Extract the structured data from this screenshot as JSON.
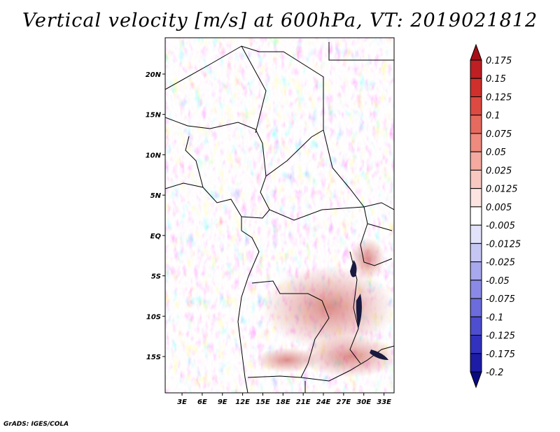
{
  "title": "Vertical velocity [m/s] at 600hPa, VT: 2019021812",
  "footer": "GrADS: IGES/COLA",
  "map": {
    "lat_labels": [
      {
        "text": "20N",
        "lat": 20
      },
      {
        "text": "15N",
        "lat": 15
      },
      {
        "text": "10N",
        "lat": 10
      },
      {
        "text": "5N",
        "lat": 5
      },
      {
        "text": "EQ",
        "lat": 0
      },
      {
        "text": "5S",
        "lat": -5
      },
      {
        "text": "10S",
        "lat": -10
      },
      {
        "text": "15S",
        "lat": -15
      }
    ],
    "lon_labels": [
      {
        "text": "3E",
        "lon": 3
      },
      {
        "text": "6E",
        "lon": 6
      },
      {
        "text": "9E",
        "lon": 9
      },
      {
        "text": "12E",
        "lon": 12
      },
      {
        "text": "15E",
        "lon": 15
      },
      {
        "text": "18E",
        "lon": 18
      },
      {
        "text": "21E",
        "lon": 21
      },
      {
        "text": "24E",
        "lon": 24
      },
      {
        "text": "27E",
        "lon": 27
      },
      {
        "text": "30E",
        "lon": 30
      },
      {
        "text": "33E",
        "lon": 33
      }
    ],
    "lon_range": [
      0.5,
      34.5
    ],
    "lat_range": [
      -19.5,
      24.5
    ]
  },
  "colorbar": {
    "labels": [
      "0.175",
      "0.15",
      "0.125",
      "0.1",
      "0.075",
      "0.05",
      "0.025",
      "0.0125",
      "0.005",
      "-0.005",
      "-0.0125",
      "-0.025",
      "-0.05",
      "-0.075",
      "-0.1",
      "-0.125",
      "-0.175",
      "-0.2"
    ],
    "colors": [
      "#a50f15",
      "#bd1f22",
      "#d0302c",
      "#dd4a42",
      "#e76a5e",
      "#ee8a7e",
      "#f4aaa0",
      "#f8c8c1",
      "#fce4e0",
      "#ffffff",
      "#e2e2fb",
      "#c6c6f5",
      "#a8a8ee",
      "#8a8ae6",
      "#6c6cdc",
      "#4e4ed0",
      "#3232bf",
      "#1c1ca6",
      "#0a0a80"
    ]
  }
}
